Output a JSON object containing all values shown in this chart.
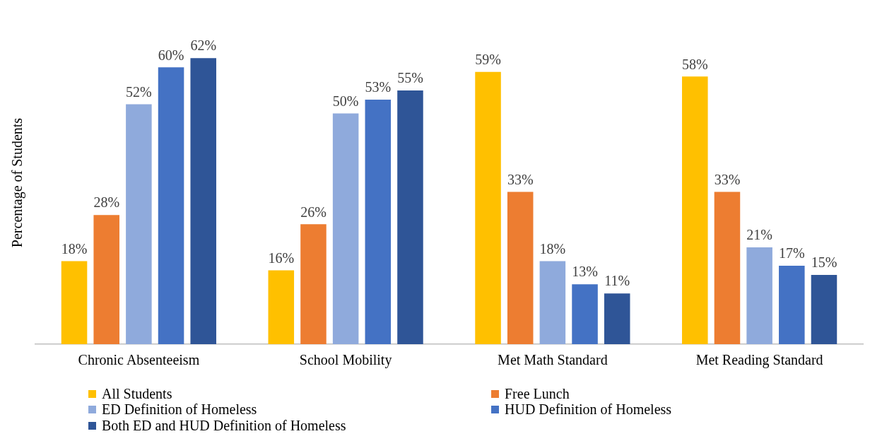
{
  "chart_data": {
    "type": "bar",
    "ylabel": "Percentage of Students",
    "categories": [
      "Chronic Absenteeism",
      "School Mobility",
      "Met Math Standard",
      "Met Reading Standard"
    ],
    "tick_labels": "x",
    "grid": false,
    "legend": "bottom",
    "series": [
      {
        "name": "All Students",
        "color": "#ffc000",
        "values": [
          18,
          16,
          59,
          58
        ],
        "value_labels": [
          "18%",
          "16%",
          "59%",
          "58%"
        ]
      },
      {
        "name": "Free Lunch",
        "color": "#ed7d31",
        "values": [
          28,
          26,
          33,
          33
        ],
        "value_labels": [
          "28%",
          "26%",
          "33%",
          "33%"
        ]
      },
      {
        "name": "ED Definition of Homeless",
        "color": "#8faadc",
        "values": [
          52,
          50,
          18,
          21
        ],
        "value_labels": [
          "52%",
          "50%",
          "18%",
          "21%"
        ]
      },
      {
        "name": "HUD Definition of Homeless",
        "color": "#4472c4",
        "values": [
          60,
          53,
          13,
          17
        ],
        "value_labels": [
          "60%",
          "53%",
          "13%",
          "17%"
        ]
      },
      {
        "name": "Both ED and HUD Definition of Homeless",
        "color": "#2f5597",
        "values": [
          62,
          55,
          11,
          15
        ],
        "value_labels": [
          "62%",
          "55%",
          "11%",
          "15%"
        ]
      }
    ]
  }
}
